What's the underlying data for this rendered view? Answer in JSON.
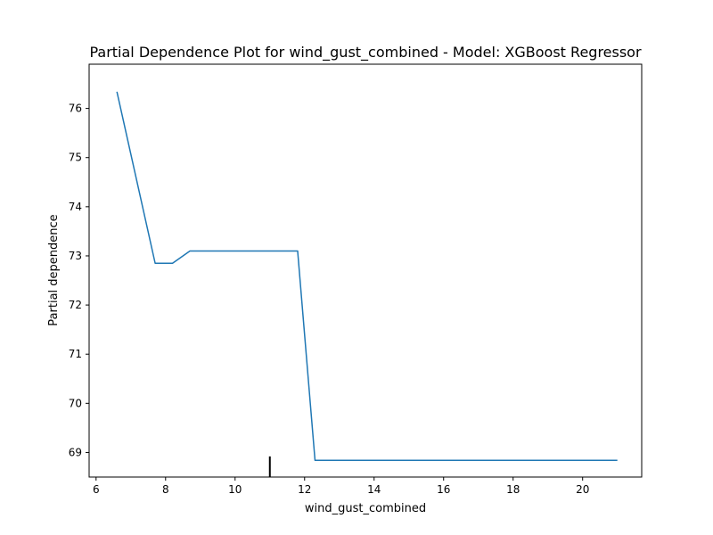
{
  "chart_data": {
    "type": "line",
    "title": "Partial Dependence Plot for wind_gust_combined - Model: XGBoost Regressor",
    "xlabel": "wind_gust_combined",
    "ylabel": "Partial dependence",
    "xlim": [
      5.8,
      21.7
    ],
    "ylim": [
      68.5,
      76.9
    ],
    "xticks": [
      6,
      8,
      10,
      12,
      14,
      16,
      18,
      20
    ],
    "yticks": [
      69,
      70,
      71,
      72,
      73,
      74,
      75,
      76
    ],
    "grid": false,
    "series": [
      {
        "color": "#1f77b4",
        "x": [
          6.6,
          7.7,
          8.2,
          8.7,
          11.8,
          12.3,
          21.0
        ],
        "y": [
          76.34,
          72.85,
          72.85,
          73.1,
          73.1,
          68.84,
          68.84
        ]
      }
    ],
    "rug": {
      "color": "#000000",
      "x": [
        11.0
      ]
    }
  }
}
